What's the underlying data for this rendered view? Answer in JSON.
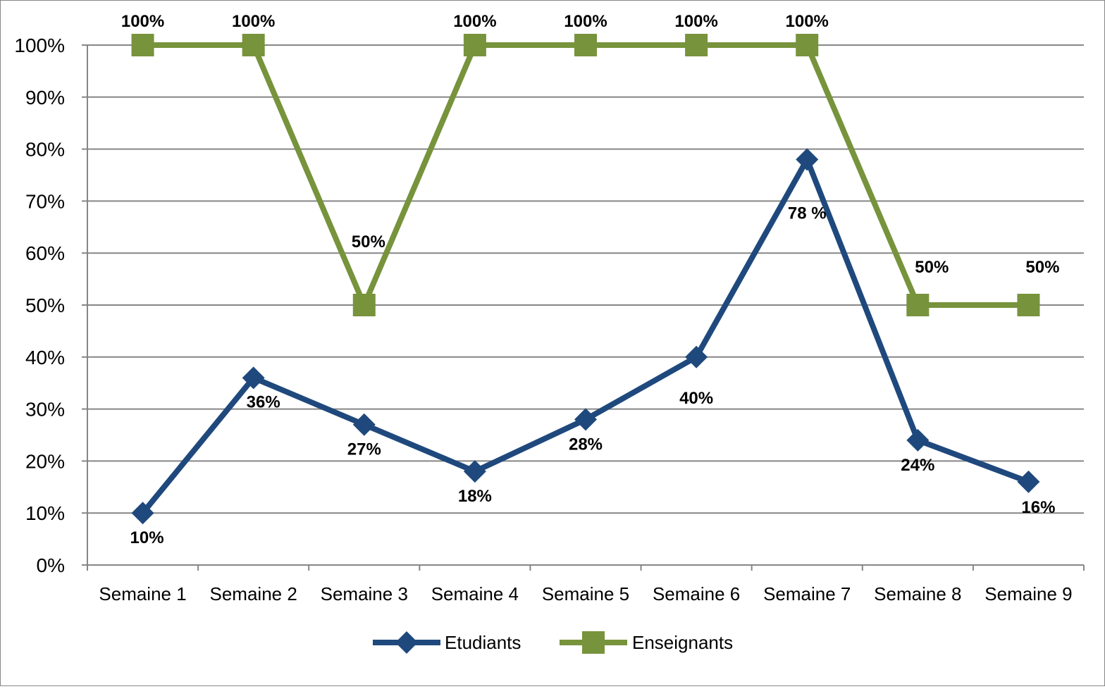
{
  "chart_data": {
    "type": "line",
    "categories": [
      "Semaine 1",
      "Semaine 2",
      "Semaine 3",
      "Semaine 4",
      "Semaine 5",
      "Semaine 6",
      "Semaine 7",
      "Semaine 8",
      "Semaine 9"
    ],
    "ylim": [
      0,
      100
    ],
    "yticks": [
      "0%",
      "10%",
      "20%",
      "30%",
      "40%",
      "50%",
      "60%",
      "70%",
      "80%",
      "90%",
      "100%"
    ],
    "grid": true,
    "legend_position": "bottom",
    "series": [
      {
        "name": "Etudiants",
        "color": "#1F497D",
        "marker": "diamond",
        "values": [
          10,
          36,
          27,
          18,
          28,
          40,
          78,
          24,
          16
        ],
        "labels": [
          "10%",
          "36%",
          "27%",
          "18%",
          "28%",
          "40%",
          "78 %",
          "24%",
          "16%"
        ]
      },
      {
        "name": "Enseignants",
        "color": "#77933C",
        "marker": "square",
        "values": [
          100,
          100,
          50,
          100,
          100,
          100,
          100,
          50,
          50
        ],
        "labels": [
          "100%",
          "100%",
          "50%",
          "100%",
          "100%",
          "100%",
          "100%",
          "50%",
          "50%"
        ]
      }
    ]
  }
}
